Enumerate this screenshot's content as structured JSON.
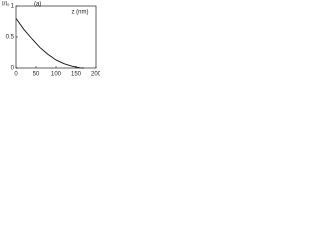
{
  "chart_data": {
    "type": "line",
    "y_label": "I/I₀",
    "annotation": "(a)",
    "x_label": "z (nm)",
    "x": [
      0,
      20,
      40,
      60,
      80,
      100,
      120,
      140,
      160,
      170
    ],
    "series": [
      {
        "name": "I/I0",
        "color": "#111111",
        "values": [
          0.8,
          0.62,
          0.47,
          0.33,
          0.22,
          0.13,
          0.07,
          0.03,
          0.003,
          0
        ]
      }
    ],
    "xlim": [
      0,
      200
    ],
    "xticks": [
      0,
      50,
      100,
      150,
      200
    ],
    "ylim": [
      0,
      1
    ],
    "yticks": [
      0,
      0.5,
      1
    ],
    "grid": false
  }
}
